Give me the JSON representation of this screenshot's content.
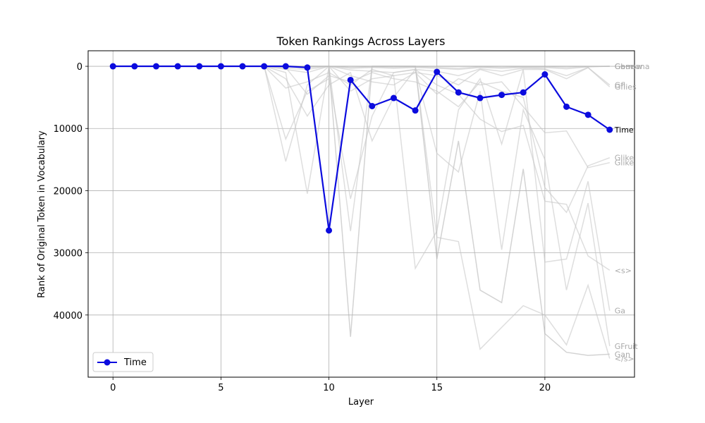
{
  "chart_data": {
    "type": "line",
    "title": "Token Rankings Across Layers",
    "xlabel": "Layer",
    "ylabel": "Rank of Original Token in Vocabulary",
    "xlim": [
      -1.15,
      24.15
    ],
    "ylim": [
      50000,
      -2500
    ],
    "y_inverted": true,
    "x_ticks": [
      0,
      5,
      10,
      15,
      20
    ],
    "y_ticks": [
      0,
      10000,
      20000,
      30000,
      40000
    ],
    "grid": true,
    "legend_position": "lower-left",
    "x": [
      0,
      1,
      2,
      3,
      4,
      5,
      6,
      7,
      8,
      9,
      10,
      11,
      12,
      13,
      14,
      15,
      16,
      17,
      18,
      19,
      20,
      21,
      22,
      23
    ],
    "highlight_series": {
      "name": "Time",
      "label": "Time",
      "color": "#0b0bde",
      "values": [
        0,
        0,
        0,
        0,
        0,
        0,
        0,
        0,
        0,
        200,
        26400,
        2200,
        6400,
        5100,
        7100,
        900,
        4200,
        5100,
        4600,
        4200,
        1300,
        6500,
        7800,
        10200
      ]
    },
    "background_series": [
      {
        "label": "Gan",
        "color": "#b5b5b5",
        "opacity": 0.6,
        "values": [
          0,
          0,
          0,
          0,
          0,
          0,
          0,
          0,
          0,
          0,
          0,
          43500,
          0,
          0,
          0,
          31000,
          12000,
          36000,
          38000,
          16500,
          43000,
          46000,
          46500,
          46300
        ]
      },
      {
        "label": "</s>",
        "color": "#c8c8c8",
        "opacity": 0.6,
        "values": [
          0,
          0,
          0,
          0,
          0,
          0,
          0,
          0,
          1000,
          20500,
          0,
          26500,
          0,
          0,
          0,
          27500,
          28200,
          45500,
          42000,
          38500,
          40000,
          44800,
          35200,
          47000
        ]
      },
      {
        "label": "GFruit",
        "color": "#c8c8c8",
        "opacity": 0.6,
        "values": [
          0,
          0,
          0,
          0,
          0,
          0,
          0,
          0,
          2000,
          8000,
          3000,
          1000,
          12000,
          5000,
          500,
          14000,
          17000,
          4000,
          29500,
          7000,
          15000,
          36000,
          22000,
          45000
        ]
      },
      {
        "label": "Ga",
        "color": "#c8c8c8",
        "opacity": 0.6,
        "values": [
          0,
          0,
          0,
          0,
          0,
          0,
          0,
          0,
          15300,
          3000,
          0,
          4000,
          2000,
          1500,
          32500,
          26500,
          7000,
          2000,
          12500,
          500,
          31500,
          31000,
          18500,
          39300
        ]
      },
      {
        "label": "<s>",
        "color": "#c8c8c8",
        "opacity": 0.6,
        "values": [
          0,
          0,
          0,
          0,
          0,
          0,
          0,
          0,
          11700,
          4000,
          2000,
          21300,
          8000,
          1000,
          500,
          3000,
          4500,
          8500,
          10500,
          9500,
          21700,
          22200,
          30500,
          32800
        ]
      },
      {
        "label": "Glike",
        "color": "#c8c8c8",
        "opacity": 0.6,
        "values": [
          0,
          0,
          0,
          0,
          0,
          0,
          0,
          0,
          3500,
          2500,
          1000,
          3000,
          500,
          1500,
          1000,
          4500,
          2000,
          3000,
          2500,
          6500,
          10700,
          10400,
          16300,
          15500
        ]
      },
      {
        "label": "Glike",
        "color": "#c8c8c8",
        "opacity": 0.6,
        "values": [
          0,
          0,
          0,
          0,
          0,
          0,
          0,
          0,
          200,
          4500,
          1500,
          2500,
          1000,
          2000,
          2500,
          4000,
          6500,
          2500,
          4000,
          5000,
          19500,
          23500,
          16000,
          14700
        ]
      },
      {
        "label": "Gflies",
        "color": "#c8c8c8",
        "opacity": 0.6,
        "values": [
          0,
          0,
          0,
          0,
          0,
          0,
          0,
          0,
          500,
          1000,
          0,
          1500,
          2500,
          3000,
          1000,
          1500,
          3000,
          500,
          1500,
          500,
          500,
          2000,
          200,
          3300
        ]
      },
      {
        "label": "Gfl",
        "color": "#c8c8c8",
        "opacity": 0.6,
        "values": [
          0,
          0,
          0,
          0,
          0,
          0,
          0,
          0,
          300,
          500,
          0,
          600,
          800,
          1000,
          500,
          800,
          1500,
          400,
          800,
          300,
          400,
          1500,
          200,
          3000
        ]
      },
      {
        "label": "Gbanana",
        "color": "#c8c8c8",
        "opacity": 0.6,
        "values": [
          0,
          0,
          0,
          0,
          0,
          0,
          0,
          0,
          100,
          200,
          0,
          300,
          200,
          300,
          200,
          300,
          500,
          200,
          300,
          200,
          200,
          400,
          100,
          0
        ]
      },
      {
        "label": "Garrow",
        "color": "#c8c8c8",
        "opacity": 0.6,
        "values": [
          0,
          0,
          0,
          0,
          0,
          0,
          0,
          0,
          50,
          100,
          0,
          200,
          100,
          200,
          100,
          200,
          300,
          100,
          200,
          100,
          100,
          200,
          50,
          0
        ]
      },
      {
        "label": "Gone",
        "color": "#b5b5b5",
        "opacity": 0.6,
        "values": [
          0,
          0,
          0,
          0,
          0,
          0,
          0,
          0,
          0,
          0,
          0,
          0,
          0,
          0,
          0,
          0,
          0,
          0,
          0,
          0,
          0,
          0,
          0,
          0
        ]
      }
    ]
  }
}
